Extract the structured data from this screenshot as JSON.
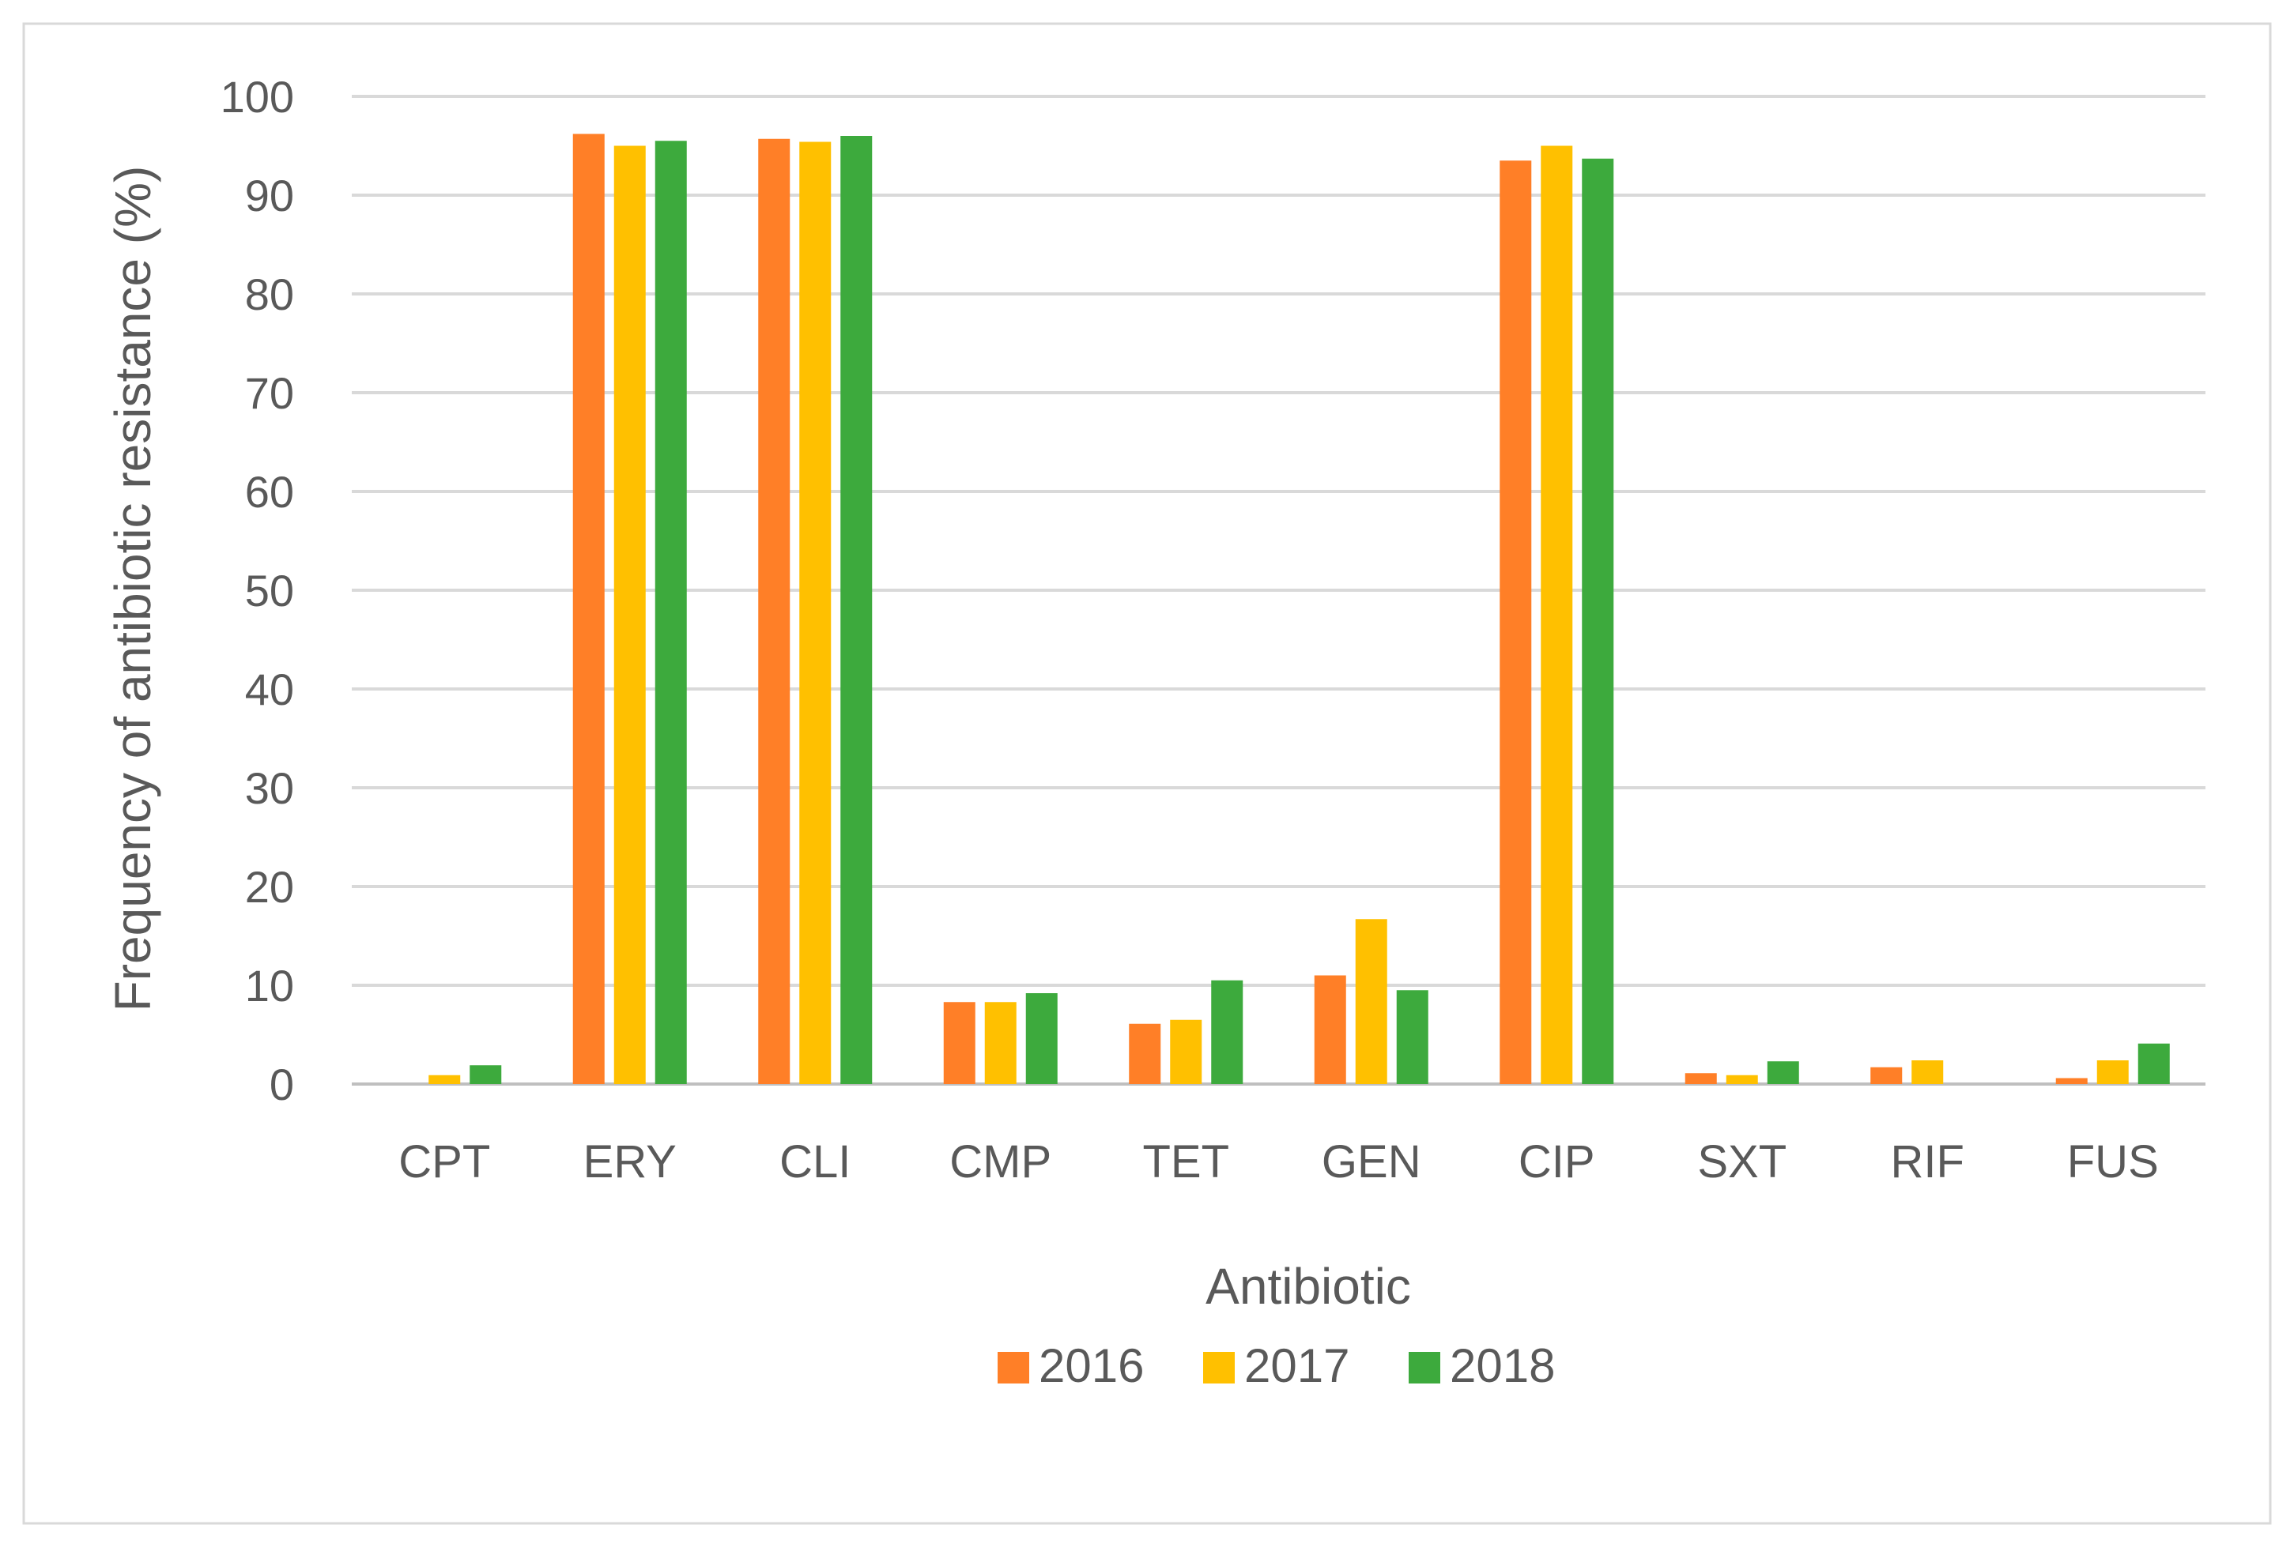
{
  "chart_data": {
    "type": "bar",
    "title": "",
    "xlabel": "Antibiotic",
    "ylabel": "Frequency of antibiotic resistance (%)",
    "ylim": [
      0,
      100
    ],
    "yticks": [
      "0",
      "10",
      "20",
      "30",
      "40",
      "50",
      "60",
      "70",
      "80",
      "90",
      "100"
    ],
    "grid": true,
    "legend_position": "bottom",
    "categories": [
      "CPT",
      "ERY",
      "CLI",
      "CMP",
      "TET",
      "GEN",
      "CIP",
      "SXT",
      "RIF",
      "FUS"
    ],
    "series": [
      {
        "name": "2016",
        "color": "#FF7F27",
        "values": [
          0,
          96.2,
          95.7,
          8.3,
          6.1,
          11.0,
          93.5,
          1.1,
          1.7,
          0.6
        ]
      },
      {
        "name": "2017",
        "color": "#FFC000",
        "values": [
          0.9,
          95.0,
          95.4,
          8.3,
          6.5,
          16.7,
          95.0,
          0.9,
          2.4,
          2.4
        ]
      },
      {
        "name": "2018",
        "color": "#3DAA3D",
        "values": [
          1.9,
          95.5,
          96.0,
          9.2,
          10.5,
          9.5,
          93.7,
          2.3,
          0,
          4.1
        ]
      }
    ]
  }
}
